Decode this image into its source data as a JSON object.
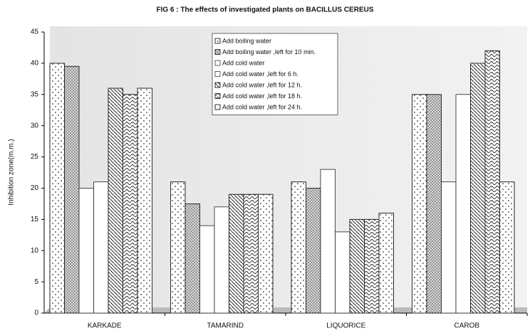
{
  "chart_data": {
    "type": "bar",
    "title": "FIG 6 : The effects of investigated plants on BACILLUS CEREUS",
    "y_label": "Inhibition zone(m.m.)",
    "categories": [
      "KARKADE",
      "TAMARIND",
      "LIQUORICE",
      "CAROB"
    ],
    "series": [
      {
        "name": "Add boiling water",
        "color": "#ffffff",
        "pattern": "dots",
        "values": [
          40,
          21,
          21,
          35
        ]
      },
      {
        "name": "Add boiling water ,left for 10 min.",
        "color": "#d8d8d8",
        "pattern": "dense-dots",
        "values": [
          39.5,
          17.5,
          20,
          35
        ]
      },
      {
        "name": "Add cold water",
        "color": "#ffffff",
        "pattern": "none",
        "values": [
          20,
          14,
          23,
          21
        ]
      },
      {
        "name": "Add cold water ,left for 6 h.",
        "color": "#ffffff",
        "pattern": "none",
        "values": [
          21,
          17,
          13,
          35
        ]
      },
      {
        "name": "Add cold water ,left for 12 h.",
        "color": "#ffffff",
        "pattern": "hatch",
        "values": [
          36,
          19,
          15,
          40
        ]
      },
      {
        "name": "Add cold water ,left for 18 h.",
        "color": "#ffffff",
        "pattern": "wave",
        "values": [
          35,
          19,
          15,
          42
        ]
      },
      {
        "name": "Add cold water ,left for 24 h.",
        "color": "#ffffff",
        "pattern": "dots",
        "values": [
          36,
          19,
          16,
          21
        ]
      }
    ],
    "ylim": [
      0,
      45
    ],
    "yticks": [
      0,
      5,
      10,
      15,
      20,
      25,
      30,
      35,
      40,
      45
    ],
    "grid": false,
    "legend": "top"
  }
}
